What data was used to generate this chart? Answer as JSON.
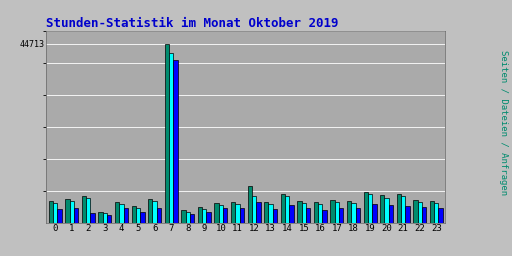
{
  "title": "Stunden-Statistik im Monat Oktober 2019",
  "ytick_label": "44713",
  "right_label": "Seiten / Dateien / Anfragen",
  "hours": [
    0,
    1,
    2,
    3,
    4,
    5,
    6,
    7,
    8,
    9,
    10,
    11,
    12,
    13,
    14,
    15,
    16,
    17,
    18,
    19,
    20,
    21,
    22,
    23
  ],
  "seiten": [
    5500,
    6000,
    6800,
    2800,
    5200,
    4200,
    5900,
    44713,
    3300,
    3900,
    4900,
    5100,
    9200,
    5200,
    7200,
    5500,
    5100,
    5800,
    5500,
    7800,
    6900,
    7100,
    5800,
    5400
  ],
  "dateien": [
    5000,
    5500,
    6300,
    2500,
    4800,
    3700,
    5400,
    42500,
    2800,
    3400,
    4400,
    4600,
    6800,
    4700,
    6700,
    5000,
    4600,
    5300,
    5000,
    7200,
    6300,
    6600,
    5300,
    4900
  ],
  "anfragen": [
    3400,
    3800,
    2400,
    2000,
    3600,
    2700,
    3800,
    40800,
    2200,
    2700,
    3600,
    3800,
    5200,
    3500,
    4400,
    3700,
    3200,
    3600,
    3600,
    4700,
    4400,
    4300,
    3900,
    3600
  ],
  "color_seiten": "#008B6E",
  "color_dateien": "#00FFFF",
  "color_anfragen": "#0000FF",
  "color_border": "#000000",
  "bg_color": "#C0C0C0",
  "plot_bg": "#AAAAAA",
  "title_color": "#0000CC",
  "title_fontsize": 9,
  "grid_color": "#CCCCCC",
  "ymax": 48000,
  "ytick_val": 44713,
  "bar_width": 0.26,
  "figsize": [
    5.12,
    2.56
  ],
  "dpi": 100
}
